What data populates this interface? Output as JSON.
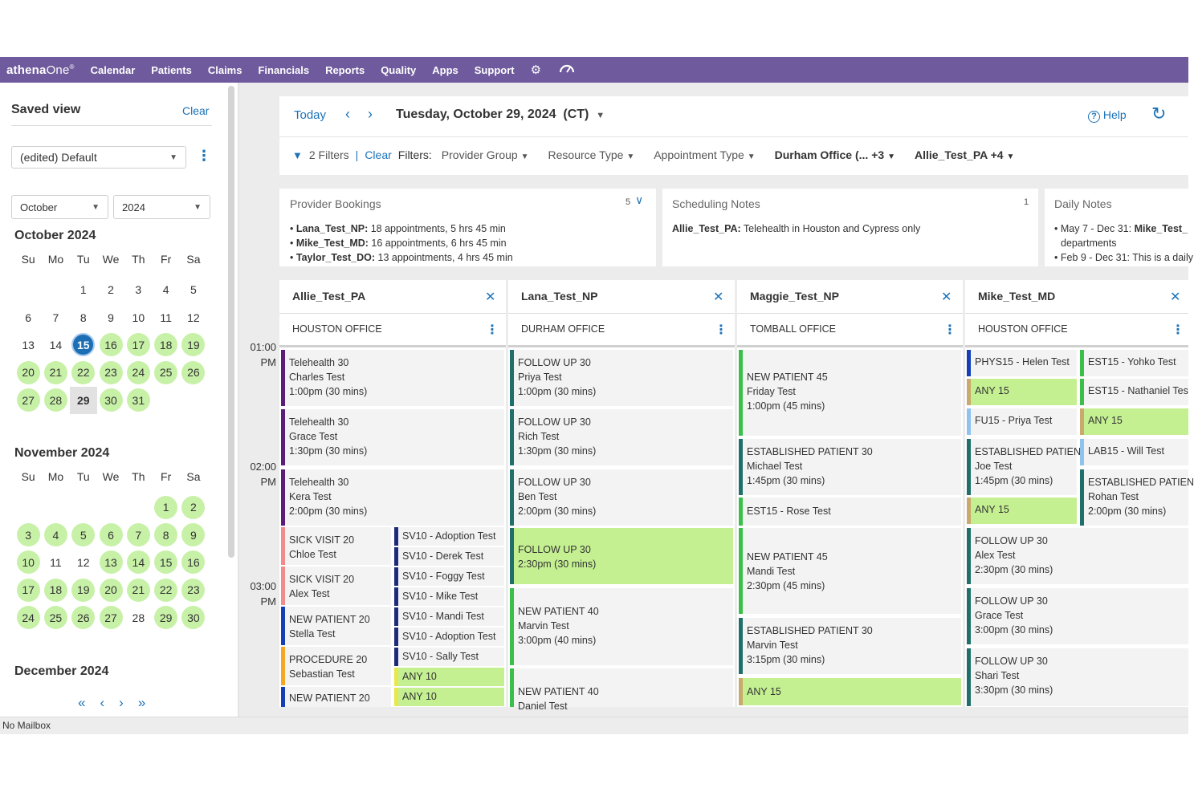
{
  "nav": {
    "logo_main": "athena",
    "logo_sub": "One",
    "logo_mark": "®",
    "items": [
      "Calendar",
      "Patients",
      "Claims",
      "Financials",
      "Reports",
      "Quality",
      "Apps",
      "Support"
    ],
    "gear_icon": "⚙",
    "speed_icon": "◠"
  },
  "saved_view": {
    "title": "Saved view",
    "clear": "Clear",
    "selected": "(edited) Default"
  },
  "minical": {
    "month_select": "October",
    "year_select": "2024",
    "day_headers": [
      "Su",
      "Mo",
      "Tu",
      "We",
      "Th",
      "Fr",
      "Sa"
    ],
    "october_title": "October 2024",
    "november_title": "November 2024",
    "december_title": "December 2024"
  },
  "toolbar": {
    "today": "Today",
    "date": "Tuesday, October 29, 2024",
    "tz": "(CT)",
    "help": "Help",
    "filters_count": "2 Filters",
    "clear": "Clear",
    "filters_label": "Filters:",
    "provider_group": "Provider Group",
    "resource_type": "Resource Type",
    "appointment_type": "Appointment Type",
    "office": "Durham Office (... +3",
    "provider": "Allie_Test_PA +4"
  },
  "cards": {
    "provider_bookings": {
      "title": "Provider Bookings",
      "count": "5",
      "lines": [
        {
          "name": "Lana_Test_NP:",
          "text": " 18 appointments, 5 hrs 45 min"
        },
        {
          "name": "Mike_Test_MD:",
          "text": " 16 appointments, 6 hrs 45 min"
        },
        {
          "name": "Taylor_Test_DO:",
          "text": " 13 appointments, 4 hrs 45 min"
        }
      ]
    },
    "scheduling_notes": {
      "title": "Scheduling Notes",
      "count": "1",
      "name": "Allie_Test_PA:",
      "text": " Telehealth in Houston and Cypress only"
    },
    "daily_notes": {
      "title": "Daily Notes",
      "line1_pre": "May 7 - Dec 31: ",
      "line1_name": "Mike_Test_",
      "line1_cont": "departments",
      "line2": "Feb 9 - Dec 31: This is a daily"
    }
  },
  "times": {
    "t1": "01:00",
    "t2": "02:00",
    "t3": "03:00",
    "pm": "PM"
  },
  "columns": [
    {
      "name": "Allie_Test_PA",
      "office": "HOUSTON OFFICE"
    },
    {
      "name": "Lana_Test_NP",
      "office": "DURHAM OFFICE"
    },
    {
      "name": "Maggie_Test_NP",
      "office": "TOMBALL OFFICE"
    },
    {
      "name": "Mike_Test_MD",
      "office": "HOUSTON OFFICE"
    }
  ],
  "appointments": {
    "c1": [
      {
        "l1": "Telehealth 30",
        "l2": "Charles Test",
        "l3": "1:00pm (30 mins)"
      },
      {
        "l1": "Telehealth 30",
        "l2": "Grace Test",
        "l3": "1:30pm (30 mins)"
      },
      {
        "l1": "Telehealth 30",
        "l2": "Kera Test",
        "l3": "2:00pm (30 mins)"
      },
      {
        "l1": "SICK VISIT 20",
        "l2": "Chloe Test"
      },
      {
        "l1": "SICK VISIT 20",
        "l2": "Alex Test"
      },
      {
        "l1": "NEW PATIENT 20",
        "l2": "Stella Test"
      },
      {
        "l1": "PROCEDURE 20",
        "l2": "Sebastian Test"
      },
      {
        "l1": "NEW PATIENT 20"
      }
    ],
    "c1b": [
      "SV10 - Adoption Test",
      "SV10 - Derek Test",
      "SV10 - Foggy Test",
      "SV10 - Mike Test",
      "SV10 - Mandi Test",
      "SV10 - Adoption Test",
      "SV10 - Sally Test",
      "ANY 10",
      "ANY 10"
    ],
    "c2": [
      {
        "l1": "FOLLOW UP 30",
        "l2": "Priya Test",
        "l3": "1:00pm (30 mins)"
      },
      {
        "l1": "FOLLOW UP 30",
        "l2": "Rich Test",
        "l3": "1:30pm (30 mins)"
      },
      {
        "l1": "FOLLOW UP 30",
        "l2": "Ben Test",
        "l3": "2:00pm (30 mins)"
      },
      {
        "l1": "FOLLOW UP 30",
        "l2": "2:30pm (30 mins)"
      },
      {
        "l1": "NEW PATIENT 40",
        "l2": "Marvin Test",
        "l3": "3:00pm (40 mins)"
      },
      {
        "l1": "NEW PATIENT 40",
        "l2": "Daniel Test"
      }
    ],
    "c3": [
      {
        "l1": "NEW PATIENT 45",
        "l2": "Friday Test",
        "l3": "1:00pm (45 mins)"
      },
      {
        "l1": "ESTABLISHED PATIENT 30",
        "l2": "Michael Test",
        "l3": "1:45pm (30 mins)"
      },
      {
        "l1": "EST15 - Rose Test"
      },
      {
        "l1": "NEW PATIENT 45",
        "l2": "Mandi Test",
        "l3": "2:30pm (45 mins)"
      },
      {
        "l1": "ESTABLISHED PATIENT 30",
        "l2": "Marvin Test",
        "l3": "3:15pm (30 mins)"
      },
      {
        "l1": "ANY 15"
      }
    ],
    "c4a": [
      {
        "l1": "PHYS15 - Helen Test"
      },
      {
        "l1": "ANY 15"
      },
      {
        "l1": "FU15 - Priya Test"
      },
      {
        "l1": "ESTABLISHED PATIEN",
        "l2": "Joe Test",
        "l3": "1:45pm (30 mins)"
      },
      {
        "l1": "ANY 15"
      },
      {
        "l1": "FOLLOW UP 30",
        "l2": "Alex Test",
        "l3": "2:30pm (30 mins)"
      },
      {
        "l1": "FOLLOW UP 30",
        "l2": "Grace Test",
        "l3": "3:00pm (30 mins)"
      },
      {
        "l1": "FOLLOW UP 30",
        "l2": "Shari Test",
        "l3": "3:30pm (30 mins)"
      }
    ],
    "c4b": [
      {
        "l1": "EST15 - Yohko Test"
      },
      {
        "l1": "EST15 - Nathaniel Tes"
      },
      {
        "l1": "ANY 15"
      },
      {
        "l1": "LAB15 - Will Test"
      },
      {
        "l1": "ESTABLISHED PATIEN",
        "l2": "Rohan Test",
        "l3": "2:00pm (30 mins)"
      }
    ]
  },
  "colors": {
    "purple": "#5a1e78",
    "teal": "#1f6f6a",
    "green": "#3cbf4a",
    "navy": "#1f2a7a",
    "pink": "#f28b8b",
    "orange": "#f5a623",
    "blue": "#1540b5",
    "lightblue": "#8fc3ee",
    "tan": "#c9a96e",
    "available": "#c5f092"
  },
  "status": "No Mailbox"
}
